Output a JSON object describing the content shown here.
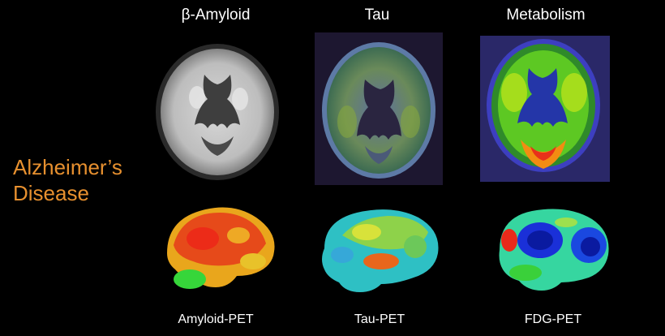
{
  "columns": {
    "amyloid": "β-Amyloid",
    "tau": "Tau",
    "metabolism": "Metabolism"
  },
  "row_label": {
    "line1": "Alzheimer’s",
    "line2": "Disease"
  },
  "bottom_labels": {
    "amyloid_pet": "Amyloid-PET",
    "tau_pet": "Tau-PET",
    "fdg_pet": "FDG-PET"
  },
  "colors": {
    "background": "#000000",
    "text": "#ffffff",
    "row_label": "#e7902f"
  }
}
